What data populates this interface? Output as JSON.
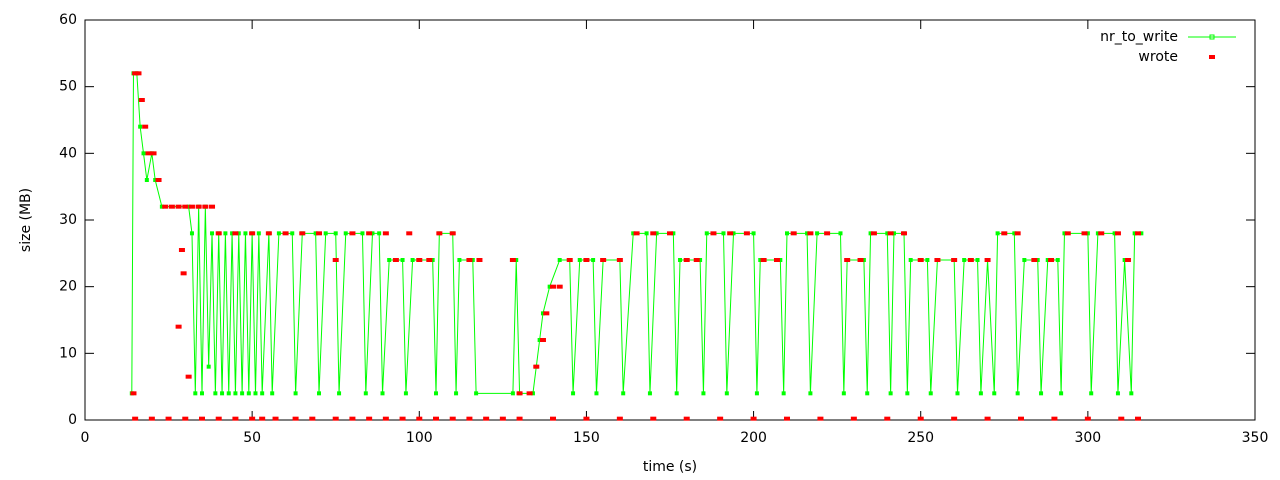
{
  "chart_data": {
    "type": "line",
    "xlabel": "time (s)",
    "ylabel": "size (MB)",
    "xlim": [
      0,
      350
    ],
    "xticks": [
      0,
      50,
      100,
      150,
      200,
      250,
      300,
      350
    ],
    "ylim": [
      0,
      60
    ],
    "yticks": [
      0,
      10,
      20,
      30,
      40,
      50,
      60
    ],
    "legend": "top-right",
    "series": [
      {
        "name": "nr_to_write",
        "color": "#00ff00",
        "style": "linespoints",
        "x": [
          14,
          14.5,
          15.5,
          16.5,
          17.5,
          18.5,
          20,
          21,
          23,
          31,
          32,
          33,
          34,
          35,
          36,
          37,
          38,
          39,
          40,
          41,
          42,
          43,
          44,
          45,
          46,
          47,
          48,
          49,
          50,
          51,
          52,
          53,
          55,
          56,
          58,
          62,
          63,
          65,
          69,
          70,
          72,
          75,
          76,
          78,
          83,
          84,
          86,
          88,
          89,
          91,
          95,
          96,
          98,
          104,
          105,
          106,
          110,
          111,
          112,
          116,
          117,
          128,
          129,
          130,
          134,
          135,
          136,
          137,
          139,
          142,
          145,
          146,
          148,
          152,
          153,
          155,
          160,
          161,
          164,
          168,
          169,
          171,
          176,
          177,
          178,
          184,
          185,
          186,
          191,
          192,
          194,
          200,
          201,
          202,
          208,
          209,
          210,
          216,
          217,
          219,
          226,
          227,
          228,
          233,
          234,
          235,
          240,
          241,
          242,
          245,
          246,
          247,
          252,
          253,
          255,
          260,
          261,
          263,
          267,
          268,
          270,
          272,
          273,
          278,
          279,
          281,
          285,
          286,
          288,
          291,
          292,
          293,
          300,
          301,
          303,
          308,
          309,
          311,
          313,
          314,
          316
        ],
        "values": [
          4,
          52,
          52,
          44,
          40,
          36,
          40,
          36,
          32,
          32,
          28,
          4,
          32,
          4,
          32,
          8,
          28,
          4,
          28,
          4,
          28,
          4,
          28,
          4,
          28,
          4,
          28,
          4,
          28,
          4,
          28,
          4,
          28,
          4,
          28,
          28,
          4,
          28,
          28,
          4,
          28,
          28,
          4,
          28,
          28,
          4,
          28,
          28,
          4,
          24,
          24,
          4,
          24,
          24,
          4,
          28,
          28,
          4,
          24,
          24,
          4,
          4,
          24,
          4,
          4,
          8,
          12,
          16,
          20,
          24,
          24,
          4,
          24,
          24,
          4,
          24,
          24,
          4,
          28,
          28,
          4,
          28,
          28,
          4,
          24,
          24,
          4,
          28,
          28,
          4,
          28,
          28,
          4,
          24,
          24,
          4,
          28,
          28,
          4,
          28,
          28,
          4,
          24,
          24,
          4,
          28,
          28,
          4,
          28,
          28,
          4,
          24,
          24,
          4,
          24,
          24,
          4,
          24,
          24,
          4,
          24,
          4,
          28,
          28,
          4,
          24,
          24,
          4,
          24,
          24,
          4,
          28,
          28,
          4,
          28,
          28,
          4,
          24,
          4,
          28,
          28
        ]
      },
      {
        "name": "wrote",
        "color": "#ff0000",
        "style": "points",
        "x": [
          14.5,
          15,
          16,
          17,
          18,
          19,
          20.5,
          22,
          24,
          26,
          28,
          28,
          29,
          29.5,
          30,
          31,
          32,
          34,
          36,
          38,
          40,
          45,
          50,
          55,
          60,
          65,
          70,
          75,
          80,
          85,
          90,
          93,
          97,
          100,
          103,
          106,
          110,
          115,
          118,
          128,
          130,
          133,
          135,
          137,
          138,
          140,
          142,
          145,
          150,
          155,
          160,
          165,
          170,
          175,
          180,
          183,
          188,
          193,
          198,
          203,
          207,
          212,
          217,
          222,
          228,
          232,
          236,
          241,
          245,
          250,
          255,
          260,
          265,
          270,
          275,
          279,
          284,
          289,
          294,
          299,
          304,
          309,
          312,
          315,
          15,
          20,
          25,
          30,
          35,
          40,
          45,
          50,
          53,
          57,
          63,
          68,
          75,
          80,
          85,
          90,
          95,
          100,
          105,
          110,
          115,
          120,
          125,
          130,
          140,
          150,
          160,
          170,
          180,
          190,
          200,
          210,
          220,
          230,
          240,
          250,
          260,
          270,
          280,
          290,
          300,
          310,
          315
        ],
        "values": [
          4,
          52,
          52,
          48,
          44,
          40,
          40,
          36,
          32,
          32,
          32,
          14,
          25.5,
          22,
          32,
          6.5,
          32,
          32,
          32,
          32,
          28,
          28,
          28,
          28,
          28,
          28,
          28,
          24,
          28,
          28,
          28,
          24,
          28,
          24,
          24,
          28,
          28,
          24,
          24,
          24,
          4,
          4,
          8,
          12,
          16,
          20,
          20,
          24,
          24,
          24,
          24,
          28,
          28,
          28,
          24,
          24,
          28,
          28,
          28,
          24,
          24,
          28,
          28,
          28,
          24,
          24,
          28,
          28,
          28,
          24,
          24,
          24,
          24,
          24,
          28,
          28,
          24,
          24,
          28,
          28,
          28,
          28,
          24,
          28,
          0.2,
          0.2,
          0.2,
          0.2,
          0.2,
          0.2,
          0.2,
          0.2,
          0.2,
          0.2,
          0.2,
          0.2,
          0.2,
          0.2,
          0.2,
          0.2,
          0.2,
          0.2,
          0.2,
          0.2,
          0.2,
          0.2,
          0.2,
          0.2,
          0.2,
          0.2,
          0.2,
          0.2,
          0.2,
          0.2,
          0.2,
          0.2,
          0.2,
          0.2,
          0.2,
          0.2,
          0.2,
          0.2,
          0.2,
          0.2,
          0.2,
          0.2,
          0.2
        ]
      }
    ]
  }
}
